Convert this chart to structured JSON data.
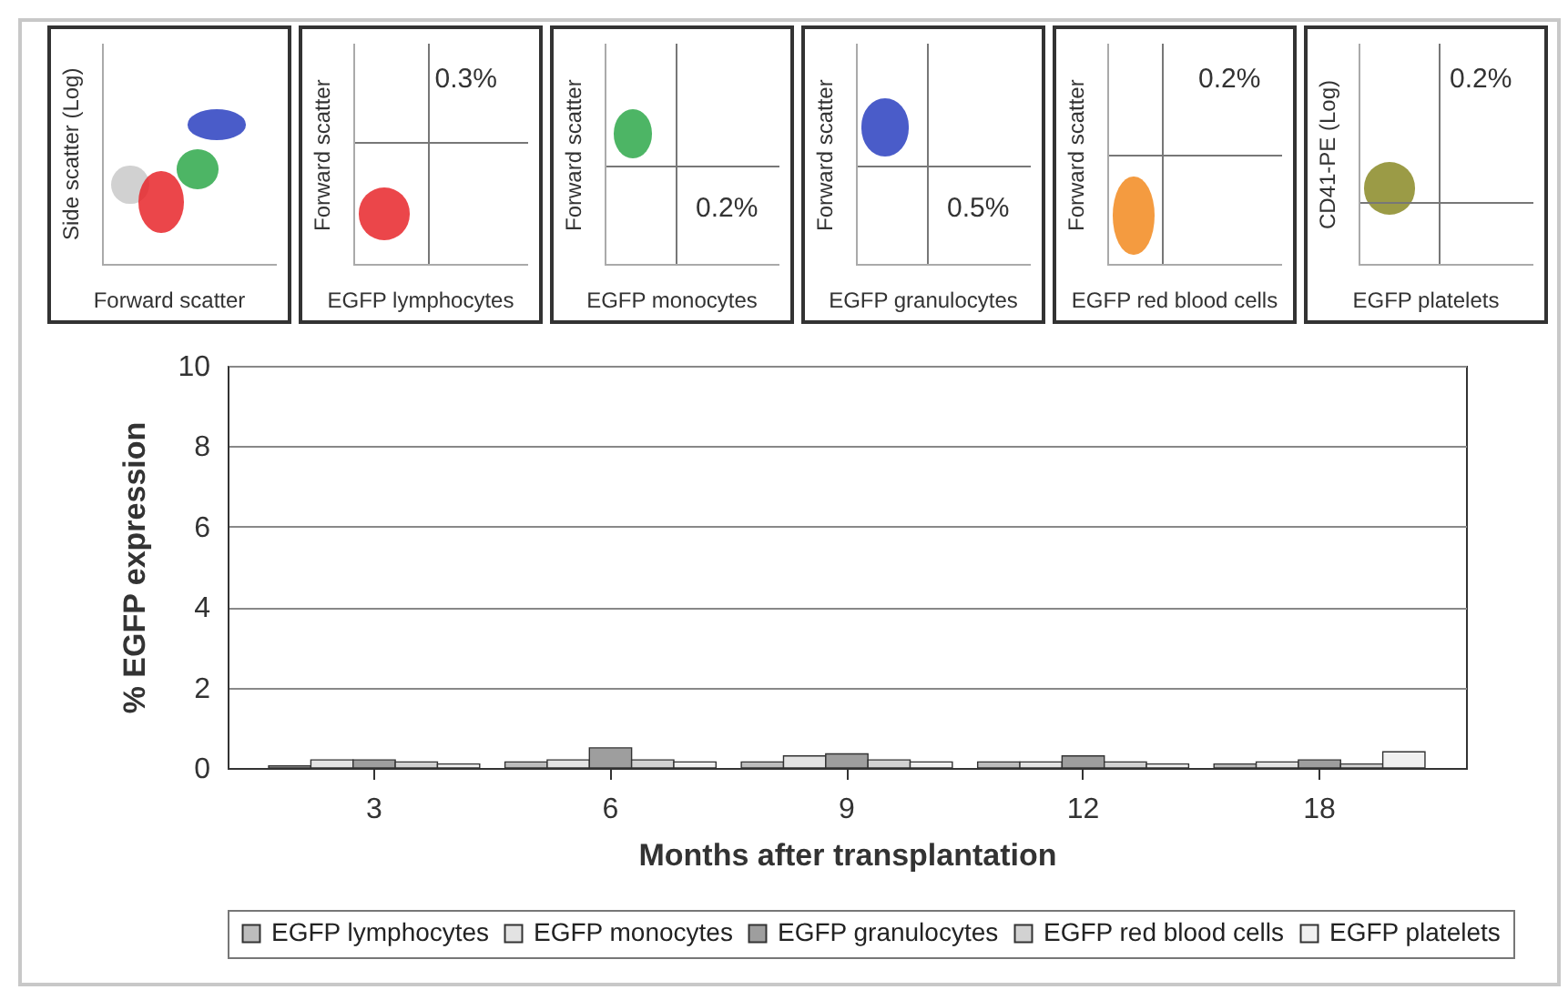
{
  "chart_data": [
    {
      "type": "other",
      "xlabel": "Forward scatter",
      "ylabel": "Side scatter (Log)"
    },
    {
      "type": "other",
      "xlabel": "EGFP lymphocytes",
      "ylabel": "Forward scatter",
      "annotations": [
        "0.3%"
      ]
    },
    {
      "type": "other",
      "xlabel": "EGFP monocytes",
      "ylabel": "Forward scatter",
      "annotations": [
        "0.2%"
      ]
    },
    {
      "type": "other",
      "xlabel": "EGFP granulocytes",
      "ylabel": "Forward scatter",
      "annotations": [
        "0.5%"
      ]
    },
    {
      "type": "other",
      "xlabel": "EGFP red blood cells",
      "ylabel": "Forward scatter",
      "annotations": [
        "0.2%"
      ]
    },
    {
      "type": "other",
      "xlabel": "EGFP platelets",
      "ylabel": "CD41-PE (Log)",
      "annotations": [
        "0.2%"
      ]
    },
    {
      "type": "bar",
      "xlabel": "Months after transplantation",
      "ylabel": "% EGFP expression",
      "categories": [
        "3",
        "6",
        "9",
        "12",
        "18"
      ],
      "series": [
        {
          "name": "EGFP lymphocytes",
          "color": "#bdbdbd",
          "values": [
            0.05,
            0.15,
            0.15,
            0.15,
            0.1
          ]
        },
        {
          "name": "EGFP monocytes",
          "color": "#e3e3e3",
          "values": [
            0.2,
            0.2,
            0.3,
            0.15,
            0.15
          ]
        },
        {
          "name": "EGFP granulocytes",
          "color": "#9e9e9e",
          "values": [
            0.2,
            0.5,
            0.35,
            0.3,
            0.2
          ]
        },
        {
          "name": "EGFP red blood cells",
          "color": "#d2d2d2",
          "values": [
            0.15,
            0.2,
            0.2,
            0.15,
            0.1
          ]
        },
        {
          "name": "EGFP platelets",
          "color": "#f0f0f0",
          "values": [
            0.1,
            0.15,
            0.15,
            0.1,
            0.4
          ]
        }
      ],
      "ylim": [
        0,
        10
      ],
      "yticks": [
        0,
        2,
        4,
        6,
        8,
        10
      ],
      "grid": "y",
      "legend": "bottom"
    }
  ]
}
